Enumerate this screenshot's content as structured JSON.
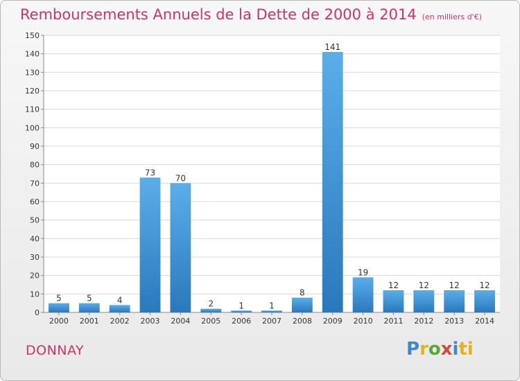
{
  "header": {
    "title": "Remboursements Annuels de la Dette de 2000 à 2014",
    "subtitle": "(en milliers d'€)"
  },
  "footer": {
    "city": "DONNAY",
    "logo_letters": [
      "P",
      "r",
      "o",
      "x",
      "i",
      "ti"
    ]
  },
  "colors": {
    "bar_light": "#5aaee8",
    "bar_dark": "#2a78bd",
    "title": "#cc3366"
  },
  "chart_data": {
    "type": "bar",
    "title": "Remboursements Annuels de la Dette de 2000 à 2014",
    "subtitle": "(en milliers d'€)",
    "categories": [
      "2000",
      "2001",
      "2002",
      "2003",
      "2004",
      "2005",
      "2006",
      "2007",
      "2008",
      "2009",
      "2010",
      "2011",
      "2012",
      "2013",
      "2014"
    ],
    "values": [
      5,
      5,
      4,
      73,
      70,
      2,
      1,
      1,
      8,
      141,
      19,
      12,
      12,
      12,
      12
    ],
    "xlabel": "",
    "ylabel": "",
    "ylim": [
      0,
      150
    ],
    "yticks": [
      0,
      10,
      20,
      30,
      40,
      50,
      60,
      70,
      80,
      90,
      100,
      110,
      120,
      130,
      140,
      150
    ],
    "grid": true,
    "data_labels": true
  }
}
